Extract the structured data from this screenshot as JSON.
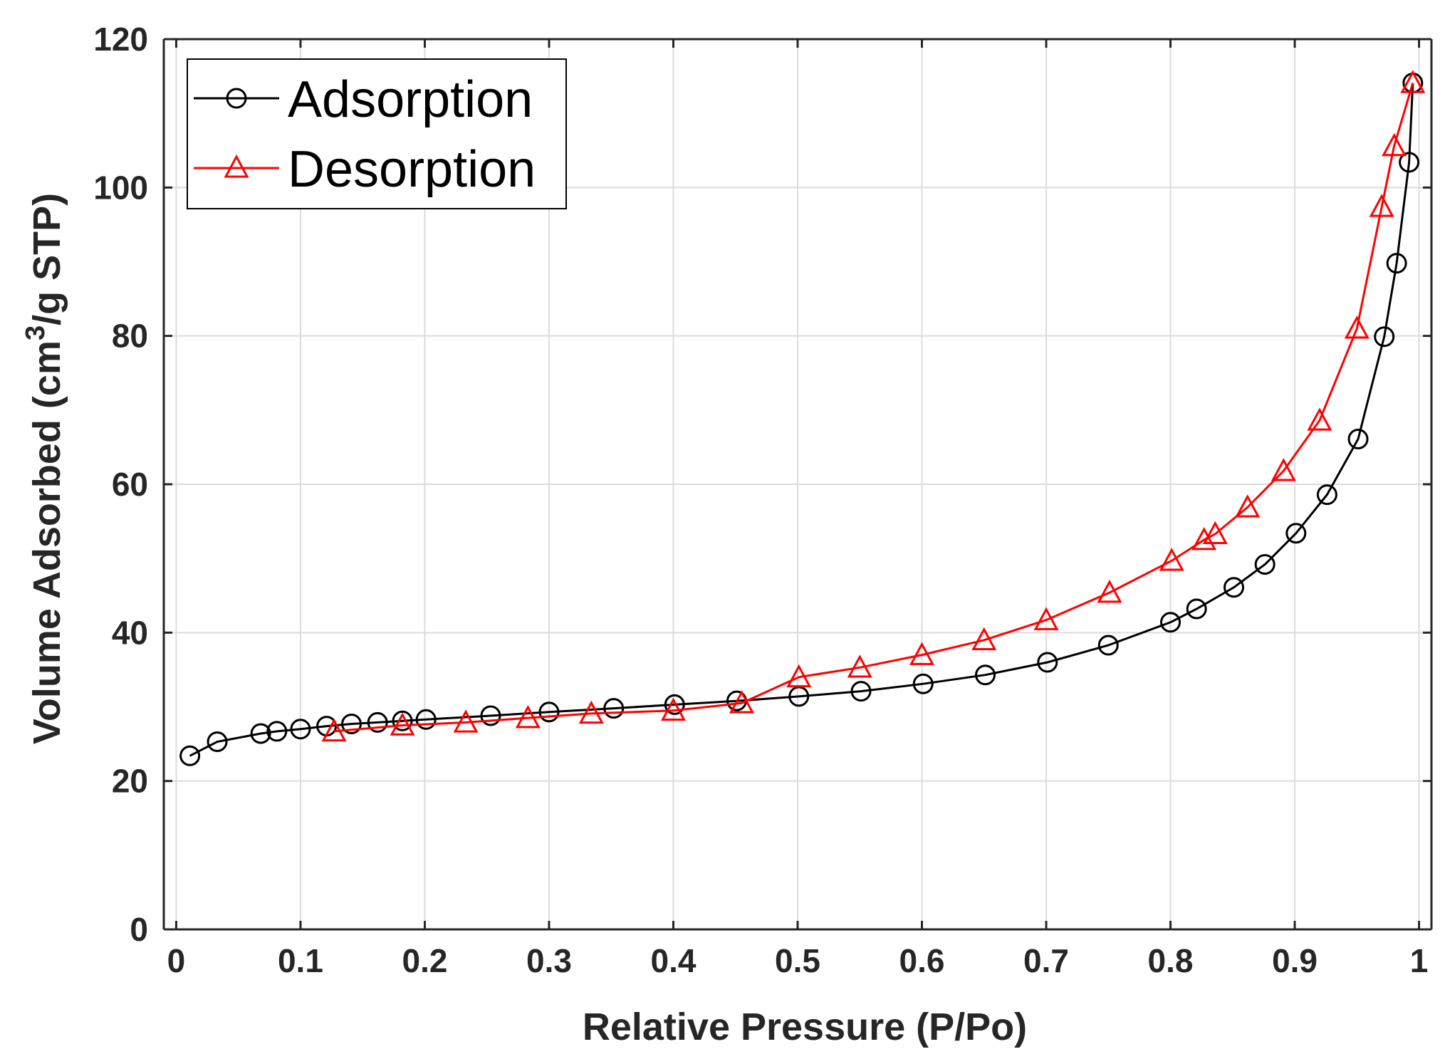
{
  "chart_data": {
    "type": "line",
    "title": "",
    "xlabel": "Relative Pressure (P/Po)",
    "ylabel_prefix": "Volume Adsorbed (cm",
    "ylabel_superscript": "3",
    "ylabel_suffix": "/g STP)",
    "xlim": [
      -0.01,
      1.01
    ],
    "ylim": [
      0,
      120
    ],
    "xticks": [
      0,
      0.1,
      0.2,
      0.3,
      0.4,
      0.5,
      0.6,
      0.7,
      0.8,
      0.9,
      1
    ],
    "xtick_labels": [
      "0",
      "0.1",
      "0.2",
      "0.3",
      "0.4",
      "0.5",
      "0.6",
      "0.7",
      "0.8",
      "0.9",
      "1"
    ],
    "yticks": [
      0,
      20,
      40,
      60,
      80,
      100,
      120
    ],
    "ytick_labels": [
      "0",
      "20",
      "40",
      "60",
      "80",
      "100",
      "120"
    ],
    "grid": true,
    "legend_position": "top-left",
    "series": [
      {
        "name": "Adsorption",
        "color": "#000000",
        "marker": "circle",
        "x": [
          0.011,
          0.033,
          0.068,
          0.081,
          0.1,
          0.121,
          0.141,
          0.162,
          0.182,
          0.201,
          0.253,
          0.3,
          0.352,
          0.401,
          0.451,
          0.501,
          0.551,
          0.601,
          0.651,
          0.701,
          0.75,
          0.8,
          0.821,
          0.851,
          0.876,
          0.901,
          0.926,
          0.951,
          0.972,
          0.982,
          0.992,
          0.995
        ],
        "y": [
          23.4,
          25.3,
          26.4,
          26.7,
          27.0,
          27.4,
          27.7,
          27.9,
          28.1,
          28.3,
          28.8,
          29.3,
          29.8,
          30.3,
          30.8,
          31.4,
          32.1,
          33.1,
          34.3,
          36.0,
          38.3,
          41.4,
          43.2,
          46.1,
          49.2,
          53.4,
          58.6,
          66.1,
          79.9,
          89.8,
          103.4,
          114.1
        ]
      },
      {
        "name": "Desorption",
        "color": "#ff0000",
        "marker": "triangle",
        "x": [
          0.127,
          0.182,
          0.233,
          0.283,
          0.334,
          0.4,
          0.455,
          0.501,
          0.55,
          0.6,
          0.65,
          0.7,
          0.751,
          0.801,
          0.827,
          0.836,
          0.862,
          0.891,
          0.92,
          0.95,
          0.97,
          0.98,
          0.995
        ],
        "y": [
          26.7,
          27.5,
          27.9,
          28.5,
          29.1,
          29.5,
          30.5,
          34.0,
          35.3,
          37.0,
          39.0,
          41.7,
          45.4,
          49.7,
          52.5,
          53.3,
          56.9,
          61.8,
          68.6,
          81.0,
          97.4,
          105.6,
          114.1
        ]
      }
    ]
  }
}
